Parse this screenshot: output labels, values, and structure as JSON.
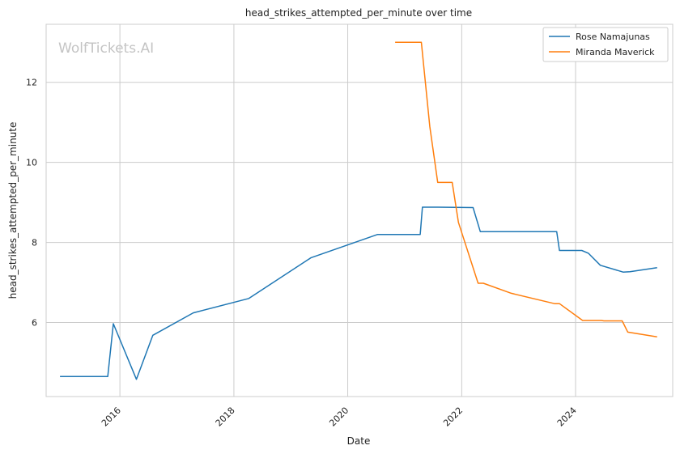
{
  "chart_data": {
    "type": "line",
    "title": "head_strikes_attempted_per_minute over time",
    "xlabel": "Date",
    "ylabel": "head_strikes_attempted_per_minute",
    "watermark": "WolfTickets.AI",
    "xlim": [
      "2014-09-15",
      "2025-09-15"
    ],
    "ylim": [
      4.15,
      13.45
    ],
    "x_ticks": [
      "2016-01-01",
      "2018-01-01",
      "2020-01-01",
      "2022-01-01",
      "2024-01-01"
    ],
    "x_tick_labels": [
      "2016",
      "2018",
      "2020",
      "2022",
      "2024"
    ],
    "y_ticks": [
      6,
      8,
      10,
      12
    ],
    "y_tick_labels": [
      "6",
      "8",
      "10",
      "12"
    ],
    "grid": true,
    "legend": "top-right",
    "series": [
      {
        "name": "Rose Namajunas",
        "color": "#1f77b4",
        "points": [
          [
            "2014-12-13",
            4.65
          ],
          [
            "2015-10-15",
            4.65
          ],
          [
            "2015-11-20",
            5.97
          ],
          [
            "2016-04-16",
            4.58
          ],
          [
            "2016-07-30",
            5.68
          ],
          [
            "2017-04-15",
            6.24
          ],
          [
            "2018-04-07",
            6.6
          ],
          [
            "2019-05-11",
            7.62
          ],
          [
            "2020-07-11",
            8.2
          ],
          [
            "2021-04-10",
            8.2
          ],
          [
            "2021-04-24",
            8.88
          ],
          [
            "2021-08-01",
            8.88
          ],
          [
            "2022-03-15",
            8.87
          ],
          [
            "2022-04-30",
            8.27
          ],
          [
            "2023-09-02",
            8.27
          ],
          [
            "2023-09-20",
            7.8
          ],
          [
            "2024-02-10",
            7.8
          ],
          [
            "2024-03-23",
            7.73
          ],
          [
            "2024-06-08",
            7.43
          ],
          [
            "2024-11-01",
            7.26
          ],
          [
            "2024-12-15",
            7.27
          ],
          [
            "2025-06-07",
            7.37
          ]
        ]
      },
      {
        "name": "Miranda Maverick",
        "color": "#ff7f0e",
        "points": [
          [
            "2020-10-31",
            13.0
          ],
          [
            "2021-04-17",
            13.0
          ],
          [
            "2021-06-10",
            10.9
          ],
          [
            "2021-07-31",
            9.5
          ],
          [
            "2021-11-01",
            9.5
          ],
          [
            "2021-12-11",
            8.5
          ],
          [
            "2022-04-16",
            6.98
          ],
          [
            "2022-05-20",
            6.98
          ],
          [
            "2022-11-15",
            6.73
          ],
          [
            "2023-08-19",
            6.47
          ],
          [
            "2023-09-20",
            6.47
          ],
          [
            "2024-02-15",
            6.05
          ],
          [
            "2024-06-15",
            6.05
          ],
          [
            "2024-07-01",
            6.04
          ],
          [
            "2024-10-26",
            6.04
          ],
          [
            "2024-12-01",
            5.76
          ],
          [
            "2025-06-07",
            5.64
          ]
        ]
      }
    ]
  }
}
